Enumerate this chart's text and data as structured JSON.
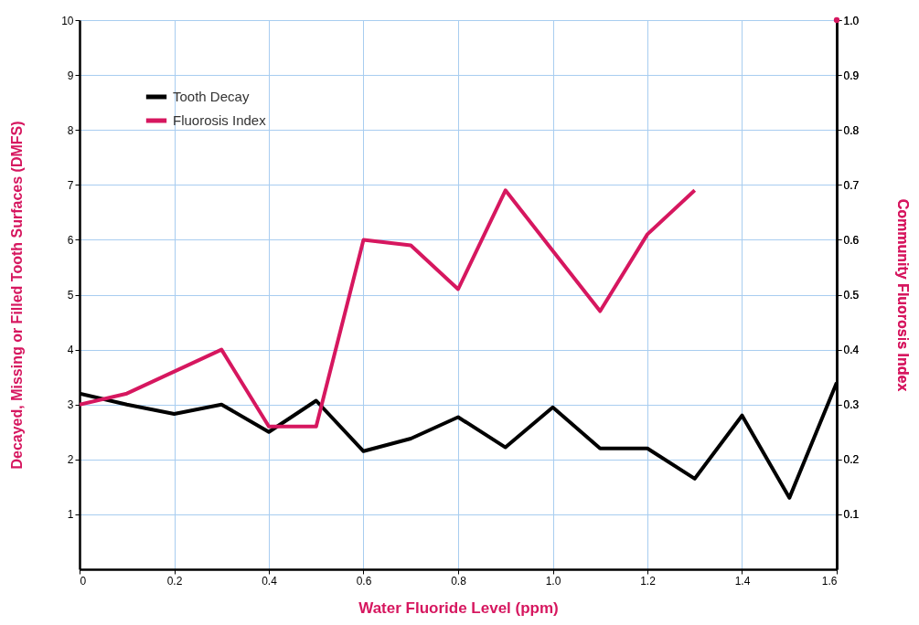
{
  "chart_data": {
    "type": "line",
    "xlabel": "Water Fluoride Level (ppm)",
    "ylabel": "Decayed, Missing or Filled Tooth Surfaces (DMFS)",
    "y2label": "Community Fluorosis Index",
    "x": [
      0,
      0.1,
      0.2,
      0.3,
      0.4,
      0.5,
      0.6,
      0.7,
      0.8,
      0.9,
      1.0,
      1.1,
      1.2,
      1.3,
      1.4,
      1.5,
      1.6
    ],
    "series": [
      {
        "name": "Tooth Decay",
        "color": "#000000",
        "values": [
          3.2,
          3.0,
          2.83,
          3.0,
          2.5,
          3.07,
          2.15,
          2.38,
          2.77,
          2.22,
          2.95,
          2.2,
          2.2,
          1.65,
          2.8,
          1.3,
          3.4
        ]
      },
      {
        "name": "Fluorosis Index",
        "color": "#d6175f",
        "axis": "y2",
        "values": [
          0.3,
          0.32,
          0.36,
          0.4,
          0.26,
          0.26,
          0.6,
          0.59,
          0.51,
          0.69,
          0.58,
          0.47,
          0.61,
          0.69,
          null,
          null,
          1.0
        ]
      }
    ],
    "xlim": [
      0,
      1.6
    ],
    "xticks": [
      0,
      0.2,
      0.4,
      0.6,
      0.8,
      {
        "value": 1.0,
        "label": "1.0"
      },
      1.2,
      1.4,
      1.6
    ],
    "ylim": [
      0,
      10
    ],
    "yticks": [
      1,
      2,
      3,
      4,
      5,
      6,
      7,
      8,
      9,
      10
    ],
    "y2lim": [
      0,
      1.0
    ],
    "y2ticks": [
      0.1,
      0.2,
      0.3,
      0.4,
      0.5,
      0.6,
      0.7,
      0.8,
      0.9,
      {
        "value": 1.0,
        "label": "1.0"
      }
    ],
    "grid": true,
    "legend": "top left",
    "line_style": "solid",
    "marker": "none"
  }
}
